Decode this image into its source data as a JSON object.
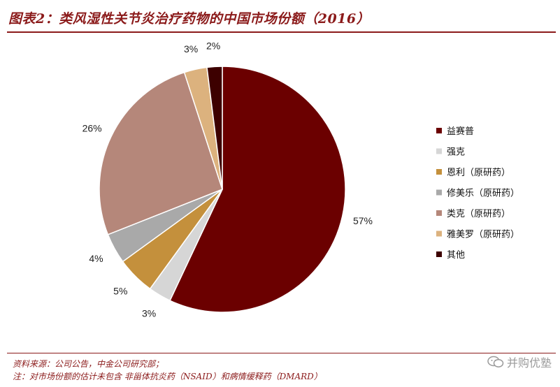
{
  "title": "图表2：类风湿性关节炎治疗药物的中国市场份额（2016）",
  "footer": {
    "source": "资料来源：公司公告，中金公司研究部；",
    "note": "注：对市场份额的估计未包含 非甾体抗炎药（NSAID）和病情缓释药（DMARD）"
  },
  "watermark": {
    "text": "并购优塾",
    "icon": "wechat-icon"
  },
  "chart_data": {
    "type": "pie",
    "title": "图表2：类风湿性关节炎治疗药物的中国市场份额（2016）",
    "legend_position": "right",
    "slices": [
      {
        "label": "益赛普",
        "value": 57,
        "display": "57%",
        "color": "#6b0000"
      },
      {
        "label": "强克",
        "value": 3,
        "display": "3%",
        "color": "#d6d6d6"
      },
      {
        "label": "恩利（原研药）",
        "value": 5,
        "display": "5%",
        "color": "#c4903c"
      },
      {
        "label": "修美乐（原研药）",
        "value": 4,
        "display": "4%",
        "color": "#a9a9a9"
      },
      {
        "label": "类克（原研药）",
        "value": 26,
        "display": "26%",
        "color": "#b5877a"
      },
      {
        "label": "雅美罗（原研药）",
        "value": 3,
        "display": "3%",
        "color": "#dcb27e"
      },
      {
        "label": "其他",
        "value": 2,
        "display": "2%",
        "color": "#3d0000"
      }
    ]
  }
}
